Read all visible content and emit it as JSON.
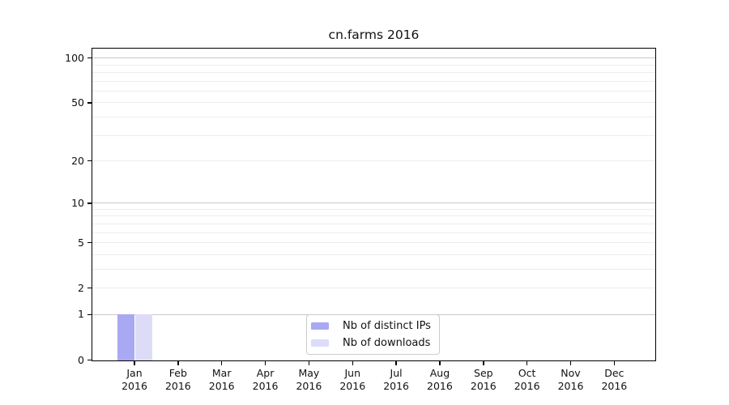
{
  "chart_data": {
    "type": "bar",
    "title": "cn.farms 2016",
    "yscale": "log1p",
    "ylim": [
      0,
      112
    ],
    "grid": true,
    "legend_position": "lower center",
    "categories": [
      {
        "month": "Jan",
        "year": "2016"
      },
      {
        "month": "Feb",
        "year": "2016"
      },
      {
        "month": "Mar",
        "year": "2016"
      },
      {
        "month": "Apr",
        "year": "2016"
      },
      {
        "month": "May",
        "year": "2016"
      },
      {
        "month": "Jun",
        "year": "2016"
      },
      {
        "month": "Jul",
        "year": "2016"
      },
      {
        "month": "Aug",
        "year": "2016"
      },
      {
        "month": "Sep",
        "year": "2016"
      },
      {
        "month": "Oct",
        "year": "2016"
      },
      {
        "month": "Nov",
        "year": "2016"
      },
      {
        "month": "Dec",
        "year": "2016"
      }
    ],
    "series": [
      {
        "name": "Nb of distinct IPs",
        "color": "#a9a9f3",
        "values": [
          1,
          0,
          0,
          0,
          0,
          0,
          0,
          0,
          0,
          0,
          0,
          0
        ]
      },
      {
        "name": "Nb of downloads",
        "color": "#dcdcf9",
        "values": [
          1,
          0,
          0,
          0,
          0,
          0,
          0,
          0,
          0,
          0,
          0,
          0
        ]
      }
    ],
    "yticks": [
      {
        "label": "100",
        "value": 100
      },
      {
        "label": "50",
        "value": 50
      },
      {
        "label": "20",
        "value": 20
      },
      {
        "label": "10",
        "value": 10
      },
      {
        "label": "5",
        "value": 5
      },
      {
        "label": "2",
        "value": 2
      },
      {
        "label": "1",
        "value": 1
      },
      {
        "label": "0",
        "value": 0
      }
    ],
    "major_gridlines": [
      1,
      10,
      100
    ],
    "minor_gridlines": [
      2,
      3,
      4,
      5,
      6,
      7,
      8,
      9,
      20,
      30,
      40,
      50,
      60,
      70,
      80,
      90
    ],
    "colors": {
      "axis": "#000000",
      "grid_major": "#c8c8c8",
      "grid_minor": "#ededed",
      "legend_border": "#cccccc",
      "background": "#ffffff"
    }
  }
}
